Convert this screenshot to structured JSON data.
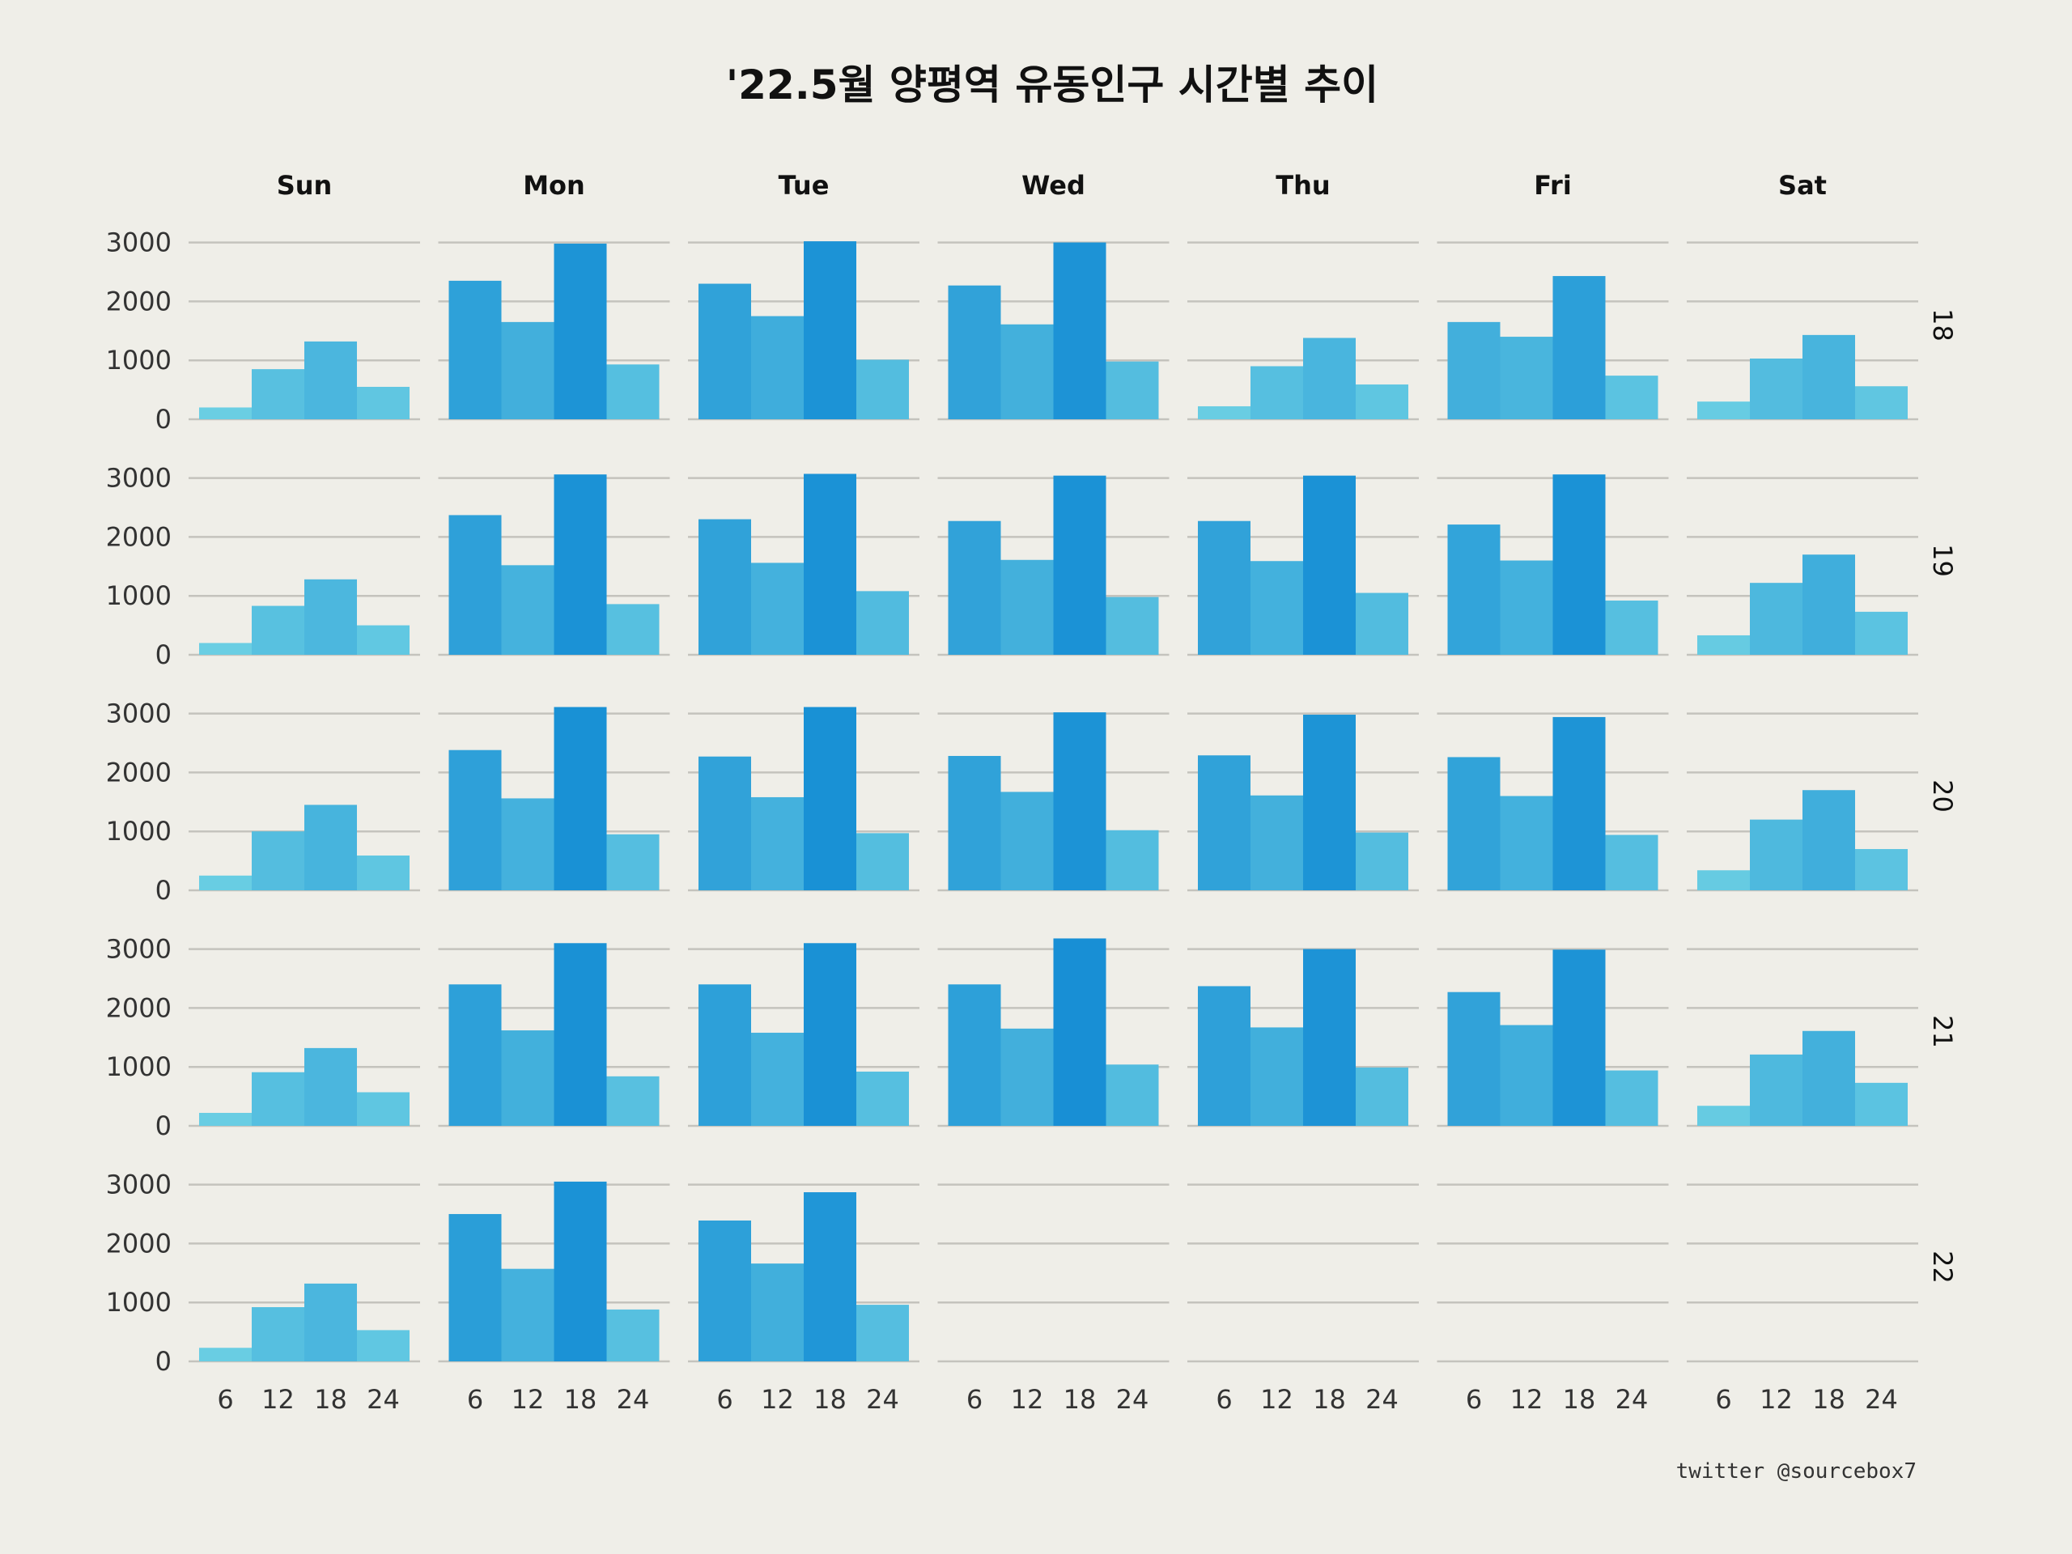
{
  "chart_data": {
    "type": "bar",
    "layout": "facet-grid",
    "title": "'22.5월 양평역 유동인구 시간별 추이",
    "columns": [
      "Sun",
      "Mon",
      "Tue",
      "Wed",
      "Thu",
      "Fri",
      "Sat"
    ],
    "rows": [
      "18",
      "19",
      "20",
      "21",
      "22"
    ],
    "x_ticks": [
      "6",
      "12",
      "18",
      "24"
    ],
    "y_ticks": [
      "0",
      "1000",
      "2000",
      "3000"
    ],
    "ylim": [
      0,
      3200
    ],
    "grid": true,
    "credit": "twitter @sourcebox7",
    "values": {
      "18": {
        "Sun": [
          200,
          850,
          1320,
          550
        ],
        "Mon": [
          2350,
          1650,
          2980,
          930
        ],
        "Tue": [
          2300,
          1750,
          3020,
          1010
        ],
        "Wed": [
          2270,
          1610,
          3000,
          980
        ],
        "Thu": [
          220,
          900,
          1380,
          590
        ],
        "Fri": [
          1650,
          1400,
          2430,
          740
        ],
        "Sat": [
          300,
          1030,
          1430,
          560
        ]
      },
      "19": {
        "Sun": [
          200,
          830,
          1280,
          500
        ],
        "Mon": [
          2370,
          1520,
          3060,
          860
        ],
        "Tue": [
          2300,
          1560,
          3070,
          1080
        ],
        "Wed": [
          2270,
          1610,
          3040,
          980
        ],
        "Thu": [
          2270,
          1590,
          3040,
          1050
        ],
        "Fri": [
          2210,
          1600,
          3060,
          920
        ],
        "Sat": [
          330,
          1220,
          1700,
          730
        ]
      },
      "20": {
        "Sun": [
          250,
          1000,
          1450,
          590
        ],
        "Mon": [
          2380,
          1560,
          3110,
          950
        ],
        "Tue": [
          2270,
          1580,
          3110,
          970
        ],
        "Wed": [
          2280,
          1670,
          3020,
          1020
        ],
        "Thu": [
          2290,
          1610,
          2980,
          980
        ],
        "Fri": [
          2260,
          1600,
          2940,
          940
        ],
        "Sat": [
          340,
          1200,
          1700,
          700
        ]
      },
      "21": {
        "Sun": [
          220,
          910,
          1320,
          570
        ],
        "Mon": [
          2400,
          1620,
          3100,
          840
        ],
        "Tue": [
          2400,
          1580,
          3100,
          920
        ],
        "Wed": [
          2400,
          1650,
          3180,
          1040
        ],
        "Thu": [
          2370,
          1670,
          3000,
          990
        ],
        "Fri": [
          2270,
          1710,
          2990,
          940
        ],
        "Sat": [
          340,
          1210,
          1610,
          730
        ]
      },
      "22": {
        "Sun": [
          230,
          920,
          1320,
          530
        ],
        "Mon": [
          2500,
          1570,
          3050,
          880
        ],
        "Tue": [
          2390,
          1660,
          2870,
          960
        ],
        "Wed": [],
        "Thu": [],
        "Fri": [],
        "Sat": []
      }
    }
  }
}
